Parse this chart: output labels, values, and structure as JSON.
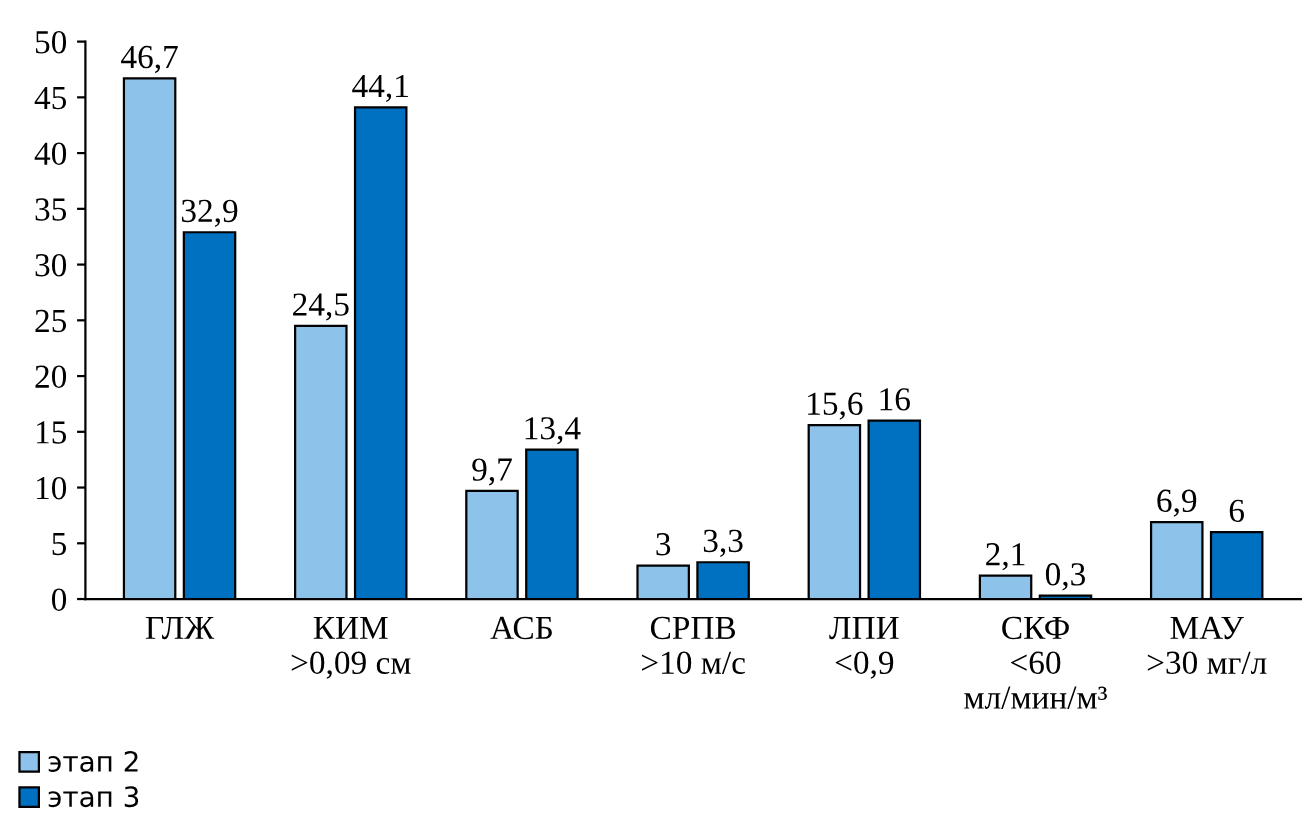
{
  "chart_data": {
    "type": "bar",
    "categories": [
      "ГЛЖ",
      "КИМ\n>0,09 см",
      "АСБ",
      "СРПВ\n>10 м/с",
      "ЛПИ\n<0,9",
      "СКФ\n<60\nмл/мин/м³",
      "МАУ\n>30 мг/л"
    ],
    "series": [
      {
        "name": "этап 2",
        "color": "#8dc3ea",
        "values": [
          46.7,
          24.5,
          9.7,
          3,
          15.6,
          2.1,
          6.9
        ],
        "value_labels": [
          "46,7",
          "24,5",
          "9,7",
          "3",
          "15,6",
          "2,1",
          "6,9"
        ]
      },
      {
        "name": "этап 3",
        "color": "#0070c0",
        "values": [
          32.9,
          44.1,
          13.4,
          3.3,
          16,
          0.3,
          6
        ],
        "value_labels": [
          "32,9",
          "44,1",
          "13,4",
          "3,3",
          "16",
          "0,3",
          "6"
        ]
      }
    ],
    "ylim": [
      0,
      50
    ],
    "yticks": [
      0,
      5,
      10,
      15,
      20,
      25,
      30,
      35,
      40,
      45,
      50
    ],
    "grid": false,
    "legend": "bottom left"
  }
}
